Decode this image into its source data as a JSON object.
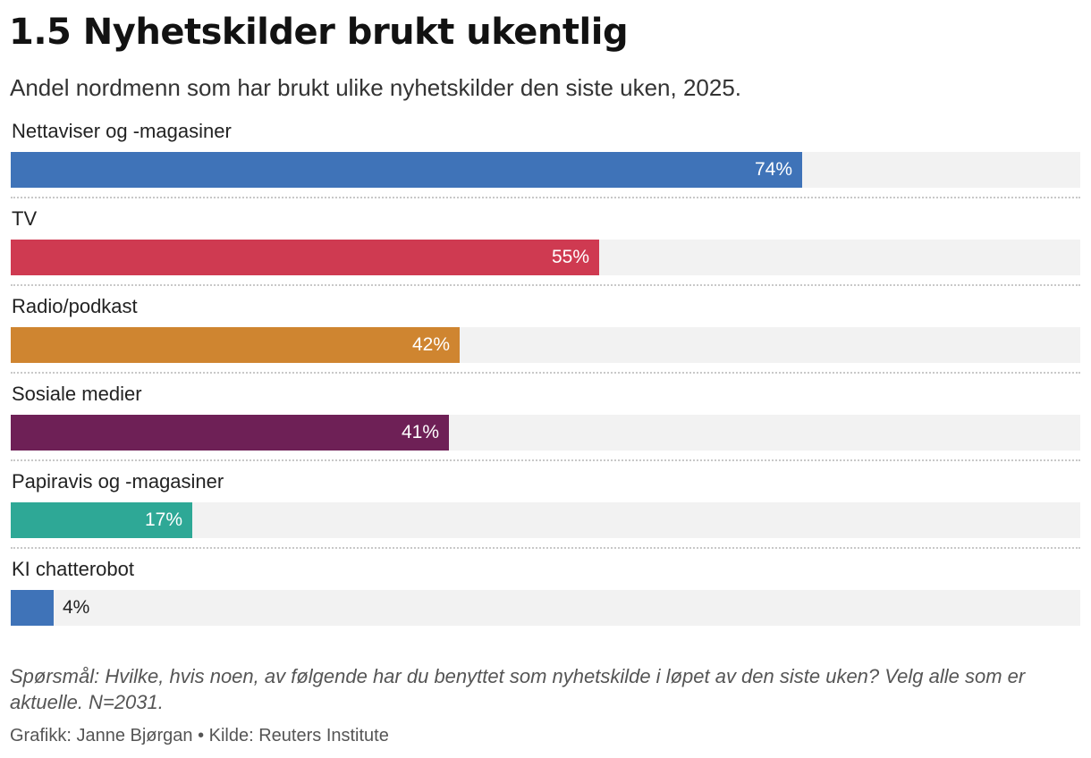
{
  "header": {
    "title": "1.5 Nyhetskilder brukt ukentlig",
    "subtitle": "Andel nordmenn som har brukt ulike nyhetskilder den siste uken, 2025."
  },
  "chart_data": {
    "type": "bar",
    "orientation": "horizontal",
    "title": "1.5 Nyhetskilder brukt ukentlig",
    "subtitle": "Andel nordmenn som har brukt ulike nyhetskilder den siste uken, 2025.",
    "categories": [
      "Nettaviser og -magasiner",
      "TV",
      "Radio/podkast",
      "Sosiale medier",
      "Papiravis og -magasiner",
      "KI chatterobot"
    ],
    "values": [
      74,
      55,
      42,
      41,
      17,
      4
    ],
    "value_labels": [
      "74%",
      "55%",
      "42%",
      "41%",
      "17%",
      "4%"
    ],
    "colors": [
      "#3f73b8",
      "#cf3a51",
      "#cf8530",
      "#6e2056",
      "#2ea896",
      "#3f73b8"
    ],
    "unit": "%",
    "xlim": [
      0,
      100
    ],
    "grid": false,
    "legend": "none"
  },
  "footer": {
    "note": "Spørsmål: Hvilke, hvis noen, av følgende har du benyttet som nyhetskilde i løpet av den siste uken? Velg alle som er aktuelle. N=2031.",
    "credit": "Grafikk: Janne Bjørgan • Kilde: Reuters Institute"
  }
}
